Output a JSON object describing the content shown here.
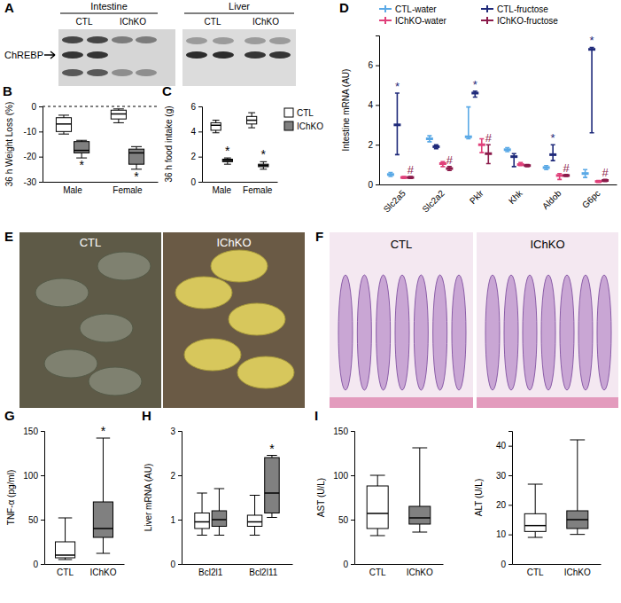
{
  "chart_data": [
    {
      "type": "box",
      "title": "B",
      "ylabel": "36 h Weight Loss (%)",
      "categories": [
        "Male",
        "Female"
      ],
      "ylim": [
        -30,
        0
      ],
      "yticks": [
        0,
        -10,
        -20,
        -30
      ],
      "series": [
        {
          "color": "#ffffff",
          "min": [
            -11,
            -6.5
          ],
          "q1": [
            -10,
            -5
          ],
          "median": [
            -7,
            -3
          ],
          "q3": [
            -4.5,
            -1.5
          ],
          "max": [
            -3.5,
            -1
          ]
        },
        {
          "color": "#808080",
          "min": [
            -20.5,
            -25
          ],
          "q1": [
            -18.5,
            -23
          ],
          "median": [
            -17.5,
            -18.5
          ],
          "q3": [
            -14,
            -17
          ],
          "max": [
            -13.5,
            -16
          ],
          "significance": [
            "*",
            "*"
          ]
        }
      ]
    },
    {
      "type": "box",
      "title": "C",
      "ylabel": "36 h food intake (g)",
      "categories": [
        "Male",
        "Female"
      ],
      "ylim": [
        0,
        6
      ],
      "yticks": [
        0,
        2,
        4,
        6
      ],
      "legend": "right",
      "series": [
        {
          "name": "CTL",
          "color": "#ffffff",
          "min": [
            3.9,
            4.3
          ],
          "q1": [
            4.1,
            4.6
          ],
          "median": [
            4.5,
            4.9
          ],
          "q3": [
            4.7,
            5.2
          ],
          "max": [
            4.9,
            5.5
          ]
        },
        {
          "name": "IChKO",
          "color": "#808080",
          "min": [
            1.4,
            1.0
          ],
          "q1": [
            1.6,
            1.2
          ],
          "median": [
            1.7,
            1.3
          ],
          "q3": [
            1.8,
            1.4
          ],
          "max": [
            1.9,
            1.6
          ],
          "significance": [
            "*",
            "*"
          ]
        }
      ]
    },
    {
      "type": "errorbar",
      "title": "D",
      "ylabel": "Intestine mRNA (AU)",
      "categories": [
        "Slc2a5",
        "Slc2a2",
        "Pklr",
        "Khk",
        "Aldob",
        "G6pc"
      ],
      "ylim": [
        0,
        7.5
      ],
      "yticks": [
        0,
        2,
        4,
        6
      ],
      "legend": "top",
      "series": [
        {
          "name": "CTL-water",
          "color": "#5aa9e6",
          "values": [
            0.5,
            2.3,
            2.4,
            1.75,
            0.85,
            0.55
          ],
          "error_minus": [
            0.1,
            0.15,
            0.1,
            0.1,
            0.1,
            0.2
          ],
          "error_plus": [
            0.1,
            0.15,
            1.5,
            0.1,
            0.1,
            0.2
          ]
        },
        {
          "name": "CTL-fructose",
          "color": "#1f2a7a",
          "values": [
            3.0,
            1.9,
            4.6,
            1.4,
            1.5,
            6.8
          ],
          "error_minus": [
            1.5,
            0.1,
            0.2,
            0.5,
            0.3,
            4.2
          ],
          "error_plus": [
            1.6,
            0.1,
            0.1,
            0.15,
            0.5,
            0.1
          ],
          "significance": [
            "*",
            null,
            "*",
            null,
            "*",
            "*"
          ]
        },
        {
          "name": "IChKO-water",
          "color": "#e0407a",
          "values": [
            0.35,
            1.05,
            2.0,
            1.0,
            0.45,
            0.15
          ],
          "error_minus": [
            0.05,
            0.15,
            0.4,
            0.05,
            0.2,
            0.05
          ],
          "error_plus": [
            0.05,
            0.1,
            0.3,
            0.1,
            0.1,
            0.05
          ]
        },
        {
          "name": "IChKO-fructose",
          "color": "#8b1a4a",
          "values": [
            0.35,
            0.8,
            1.55,
            0.95,
            0.45,
            0.2
          ],
          "error_minus": [
            0.05,
            0.1,
            0.5,
            0.05,
            0.05,
            0.05
          ],
          "error_plus": [
            0.05,
            0.1,
            0.45,
            0.05,
            0.05,
            0.05
          ],
          "significance": [
            "#",
            "#",
            "#",
            null,
            "#",
            "#"
          ]
        }
      ]
    },
    {
      "type": "box",
      "title": "G",
      "ylabel": "TNF-α (pg/ml)",
      "categories": [
        "CTL",
        "IChKO"
      ],
      "colors": [
        "#ffffff",
        "#808080"
      ],
      "ylim": [
        0,
        150
      ],
      "yticks": [
        0,
        50,
        100,
        150
      ],
      "min": [
        5,
        12
      ],
      "q1": [
        7,
        30
      ],
      "median": [
        10,
        40
      ],
      "q3": [
        25,
        70
      ],
      "max": [
        52,
        142
      ],
      "significance": [
        null,
        "*"
      ]
    },
    {
      "type": "box",
      "title": "H",
      "ylabel": "Liver mRNA (AU)",
      "categories": [
        "Bcl2l1",
        "Bcl2l11"
      ],
      "ylim": [
        0,
        3
      ],
      "yticks": [
        0,
        1,
        2,
        3
      ],
      "series": [
        {
          "color": "#ffffff",
          "min": [
            0.65,
            0.65
          ],
          "q1": [
            0.8,
            0.85
          ],
          "median": [
            0.95,
            0.95
          ],
          "q3": [
            1.15,
            1.1
          ],
          "max": [
            1.6,
            1.55
          ]
        },
        {
          "color": "#808080",
          "min": [
            0.65,
            1.05
          ],
          "q1": [
            0.85,
            1.15
          ],
          "median": [
            1.0,
            1.6
          ],
          "q3": [
            1.2,
            2.4
          ],
          "max": [
            1.7,
            2.45
          ],
          "significance": [
            null,
            "*"
          ]
        }
      ]
    },
    {
      "type": "box",
      "title": "I",
      "ylabel": "AST (U/L)",
      "categories": [
        "CTL",
        "IChKO"
      ],
      "colors": [
        "#ffffff",
        "#808080"
      ],
      "ylim": [
        0,
        150
      ],
      "yticks": [
        0,
        50,
        100,
        150
      ],
      "min": [
        32,
        36
      ],
      "q1": [
        40,
        45
      ],
      "median": [
        57,
        52
      ],
      "q3": [
        88,
        65
      ],
      "max": [
        100,
        131
      ]
    },
    {
      "type": "box",
      "ylabel": "ALT (U/L)",
      "categories": [
        "CTL",
        "IChKO"
      ],
      "colors": [
        "#ffffff",
        "#808080"
      ],
      "ylim": [
        0,
        45
      ],
      "yticks": [
        0,
        10,
        20,
        30,
        40
      ],
      "min": [
        9,
        10
      ],
      "q1": [
        11,
        12
      ],
      "median": [
        13,
        15
      ],
      "q3": [
        17,
        18
      ],
      "max": [
        27,
        42
      ]
    }
  ],
  "images": [
    {
      "title": "A",
      "groups": [
        "Intestine",
        "Liver"
      ],
      "lanes": [
        "CTL",
        "IChKO",
        "CTL",
        "IChKO"
      ],
      "band_label": "ChREBP"
    },
    {
      "title": "E",
      "labels": [
        "CTL",
        "IChKO"
      ]
    },
    {
      "title": "F",
      "labels": [
        "CTL",
        "IChKO"
      ]
    }
  ]
}
